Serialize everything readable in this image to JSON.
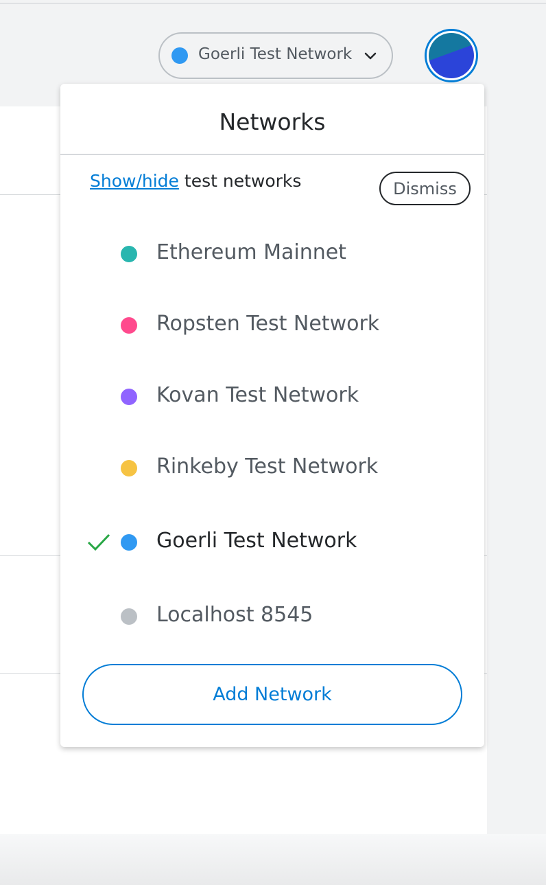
{
  "header": {
    "network_selector": "Goerli Test Network"
  },
  "dropdown": {
    "title": "Networks",
    "notice": {
      "link": "Show/hide",
      "text": "test networks",
      "dismiss": "Dismiss"
    },
    "networks": [
      {
        "label": "Ethereum Mainnet",
        "color": "#29b6af",
        "selected": false
      },
      {
        "label": "Ropsten Test Network",
        "color": "#ff4a8d",
        "selected": false
      },
      {
        "label": "Kovan Test Network",
        "color": "#9064ff",
        "selected": false
      },
      {
        "label": "Rinkeby Test Network",
        "color": "#f6c343",
        "selected": false
      },
      {
        "label": "Goerli Test Network",
        "color": "#3099f2",
        "selected": true
      },
      {
        "label": "Localhost 8545",
        "color": "#bbc0c5",
        "selected": false
      }
    ],
    "add_button": "Add Network"
  }
}
